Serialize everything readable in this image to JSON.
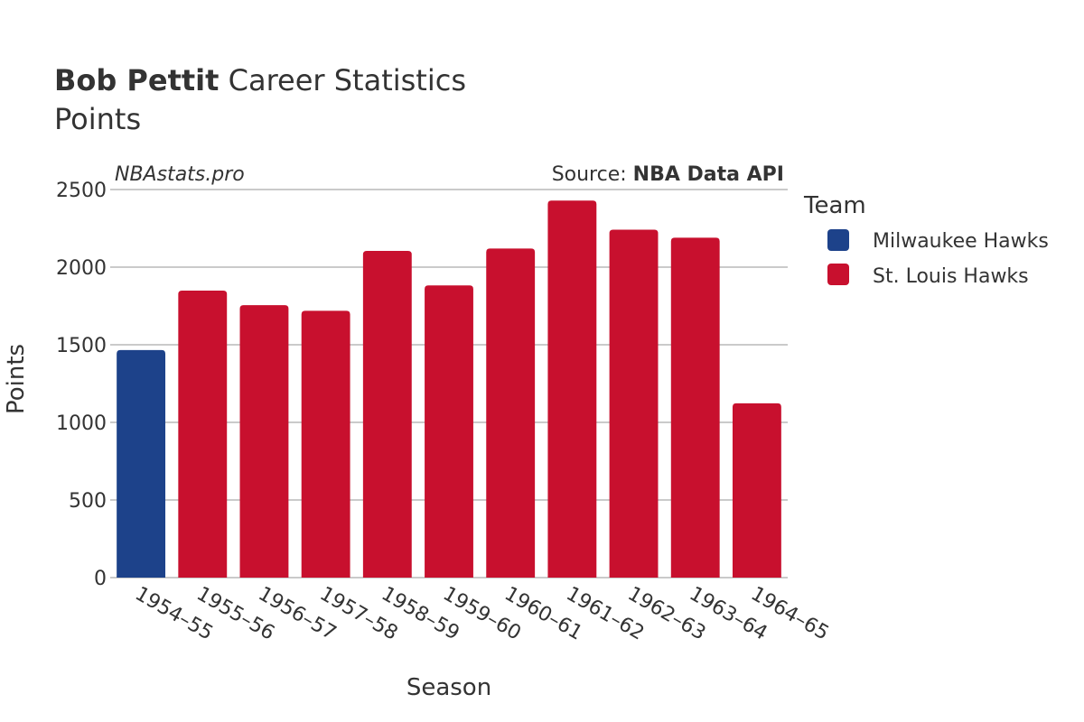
{
  "header": {
    "player_name": "Bob Pettit",
    "title_rest": "Career Statistics",
    "subtitle": "Points",
    "watermark": "NBAstats.pro",
    "source_prefix": "Source: ",
    "source_name": "NBA Data API"
  },
  "legend": {
    "title": "Team",
    "items": [
      {
        "label": "Milwaukee Hawks",
        "color": "#1d428a"
      },
      {
        "label": "St. Louis Hawks",
        "color": "#c8102e"
      }
    ]
  },
  "chart_data": {
    "type": "bar",
    "title": "Bob Pettit Career Statistics",
    "subtitle": "Points",
    "xlabel": "Season",
    "ylabel": "Points",
    "ylim": [
      0,
      2500
    ],
    "yticks": [
      0,
      500,
      1000,
      1500,
      2000,
      2500
    ],
    "grid": true,
    "legend_position": "right",
    "categories": [
      "1954–55",
      "1955–56",
      "1956–57",
      "1957–58",
      "1958–59",
      "1959–60",
      "1960–61",
      "1961–62",
      "1962–63",
      "1963–64",
      "1964–65"
    ],
    "teams": [
      "Milwaukee Hawks",
      "St. Louis Hawks",
      "St. Louis Hawks",
      "St. Louis Hawks",
      "St. Louis Hawks",
      "St. Louis Hawks",
      "St. Louis Hawks",
      "St. Louis Hawks",
      "St. Louis Hawks",
      "St. Louis Hawks",
      "St. Louis Hawks"
    ],
    "values": [
      1466,
      1849,
      1755,
      1719,
      2105,
      1882,
      2120,
      2429,
      2241,
      2190,
      1123
    ]
  }
}
